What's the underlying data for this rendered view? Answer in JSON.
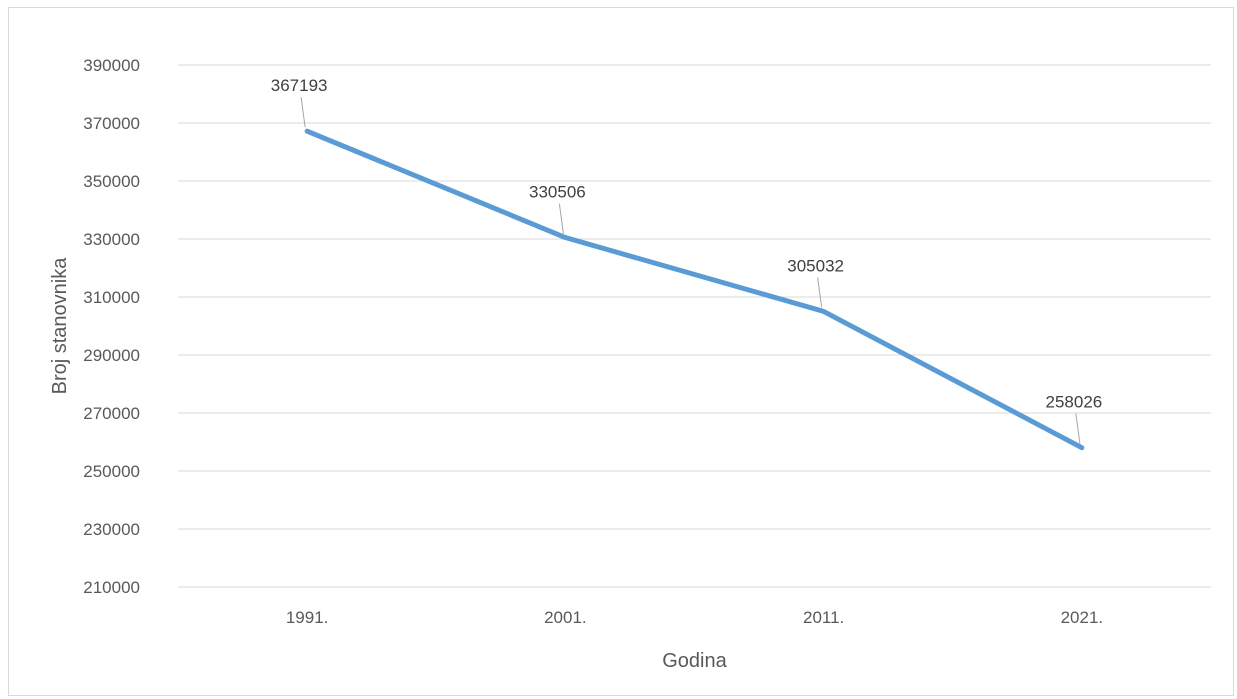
{
  "chart_data": {
    "type": "line",
    "title": "",
    "xlabel": "Godina",
    "ylabel": "Broj stanovnika",
    "categories": [
      "1991.",
      "2001.",
      "2011.",
      "2021."
    ],
    "series": [
      {
        "values": [
          367193,
          330506,
          305032,
          258026
        ],
        "color": "#5b9bd5"
      }
    ],
    "data_labels": [
      "367193",
      "330506",
      "305032",
      "258026"
    ],
    "ylim": [
      210000,
      390000
    ],
    "y_ticks": [
      210000,
      230000,
      250000,
      270000,
      290000,
      310000,
      330000,
      350000,
      370000,
      390000
    ],
    "y_tick_labels": [
      "210000",
      "230000",
      "250000",
      "270000",
      "290000",
      "310000",
      "330000",
      "350000",
      "370000",
      "390000"
    ],
    "grid": "horizontal",
    "legend": "none",
    "colors": {
      "line": "#5b9bd5",
      "grid": "#d9d9d9",
      "text": "#595959",
      "border": "#d9d9d9"
    }
  }
}
